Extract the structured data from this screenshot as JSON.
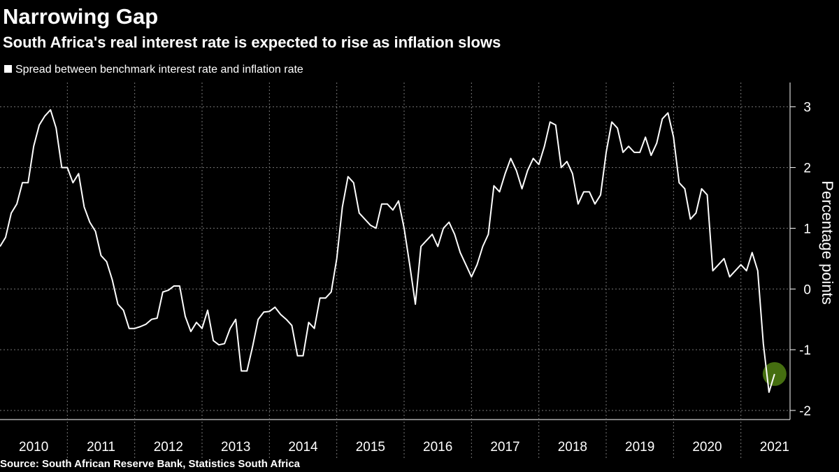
{
  "chart_data": {
    "type": "line",
    "title": "Narrowing Gap",
    "subtitle": "South Africa's real interest rate is expected to rise as inflation slows",
    "y_label": "Percentage points",
    "source": "Source: South African Reserve Bank, Statistics South Africa",
    "series": [
      {
        "name": "Spread between benchmark interest rate and inflation rate",
        "color": "#ffffff",
        "values": [
          0.7,
          0.85,
          1.25,
          1.4,
          1.75,
          1.75,
          2.35,
          2.7,
          2.85,
          2.95,
          2.65,
          2.0,
          2.0,
          1.75,
          1.9,
          1.35,
          1.1,
          0.95,
          0.55,
          0.45,
          0.15,
          -0.25,
          -0.35,
          -0.65,
          -0.65,
          -0.62,
          -0.58,
          -0.5,
          -0.48,
          -0.05,
          -0.02,
          0.05,
          0.05,
          -0.45,
          -0.7,
          -0.55,
          -0.65,
          -0.35,
          -0.85,
          -0.92,
          -0.9,
          -0.65,
          -0.5,
          -1.35,
          -1.35,
          -0.95,
          -0.5,
          -0.38,
          -0.37,
          -0.3,
          -0.42,
          -0.5,
          -0.6,
          -1.1,
          -1.1,
          -0.55,
          -0.65,
          -0.15,
          -0.15,
          -0.05,
          0.5,
          1.35,
          1.85,
          1.75,
          1.25,
          1.15,
          1.05,
          1.0,
          1.4,
          1.4,
          1.3,
          1.45,
          1.0,
          0.4,
          -0.25,
          0.7,
          0.8,
          0.9,
          0.7,
          1.0,
          1.1,
          0.9,
          0.6,
          0.4,
          0.2,
          0.4,
          0.7,
          0.9,
          1.7,
          1.6,
          1.9,
          2.15,
          1.95,
          1.65,
          1.95,
          2.15,
          2.05,
          2.35,
          2.75,
          2.7,
          2.0,
          2.1,
          1.9,
          1.4,
          1.6,
          1.6,
          1.4,
          1.55,
          2.25,
          2.75,
          2.65,
          2.25,
          2.35,
          2.25,
          2.25,
          2.5,
          2.2,
          2.4,
          2.8,
          2.9,
          2.5,
          1.75,
          1.65,
          1.15,
          1.25,
          1.65,
          1.55,
          0.3,
          0.4,
          0.5,
          0.2,
          0.3,
          0.4,
          0.3,
          0.6,
          0.3,
          -0.9,
          -1.7,
          -1.4
        ]
      }
    ],
    "x": [
      2010,
      2010.083,
      2010.167,
      2010.25,
      2010.333,
      2010.417,
      2010.5,
      2010.583,
      2010.667,
      2010.75,
      2010.833,
      2010.917,
      2011,
      2011.083,
      2011.167,
      2011.25,
      2011.333,
      2011.417,
      2011.5,
      2011.583,
      2011.667,
      2011.75,
      2011.833,
      2011.917,
      2012,
      2012.083,
      2012.167,
      2012.25,
      2012.333,
      2012.417,
      2012.5,
      2012.583,
      2012.667,
      2012.75,
      2012.833,
      2012.917,
      2013,
      2013.083,
      2013.167,
      2013.25,
      2013.333,
      2013.417,
      2013.5,
      2013.583,
      2013.667,
      2013.75,
      2013.833,
      2013.917,
      2014,
      2014.083,
      2014.167,
      2014.25,
      2014.333,
      2014.417,
      2014.5,
      2014.583,
      2014.667,
      2014.75,
      2014.833,
      2014.917,
      2015,
      2015.083,
      2015.167,
      2015.25,
      2015.333,
      2015.417,
      2015.5,
      2015.583,
      2015.667,
      2015.75,
      2015.833,
      2015.917,
      2016,
      2016.083,
      2016.167,
      2016.25,
      2016.333,
      2016.417,
      2016.5,
      2016.583,
      2016.667,
      2016.75,
      2016.833,
      2016.917,
      2017,
      2017.083,
      2017.167,
      2017.25,
      2017.333,
      2017.417,
      2017.5,
      2017.583,
      2017.667,
      2017.75,
      2017.833,
      2017.917,
      2018,
      2018.083,
      2018.167,
      2018.25,
      2018.333,
      2018.417,
      2018.5,
      2018.583,
      2018.667,
      2018.75,
      2018.833,
      2018.917,
      2019,
      2019.083,
      2019.167,
      2019.25,
      2019.333,
      2019.417,
      2019.5,
      2019.583,
      2019.667,
      2019.75,
      2019.833,
      2019.917,
      2020,
      2020.083,
      2020.167,
      2020.25,
      2020.333,
      2020.417,
      2020.5,
      2020.583,
      2020.667,
      2020.75,
      2020.833,
      2020.917,
      2021,
      2021.083,
      2021.167,
      2021.25,
      2021.333,
      2021.417,
      2021.5
    ],
    "xlim": [
      2010,
      2021.73
    ],
    "xticks": [
      {
        "value": 2010.5,
        "label": "2010"
      },
      {
        "value": 2011.5,
        "label": "2011"
      },
      {
        "value": 2012.5,
        "label": "2012"
      },
      {
        "value": 2013.5,
        "label": "2013"
      },
      {
        "value": 2014.5,
        "label": "2014"
      },
      {
        "value": 2015.5,
        "label": "2015"
      },
      {
        "value": 2016.5,
        "label": "2016"
      },
      {
        "value": 2017.5,
        "label": "2017"
      },
      {
        "value": 2018.5,
        "label": "2018"
      },
      {
        "value": 2019.5,
        "label": "2019"
      },
      {
        "value": 2020.5,
        "label": "2020"
      },
      {
        "value": 2021.5,
        "label": "2021"
      }
    ],
    "xgrid": [
      2011,
      2012,
      2013,
      2014,
      2015,
      2016,
      2017,
      2018,
      2019,
      2020,
      2021
    ],
    "ylim": [
      -2.15,
      3.4
    ],
    "yticks": [
      -2,
      -1,
      0,
      1,
      2,
      3
    ],
    "grid": true,
    "highlight_color": "#4d7a12",
    "legend": "top-left"
  }
}
